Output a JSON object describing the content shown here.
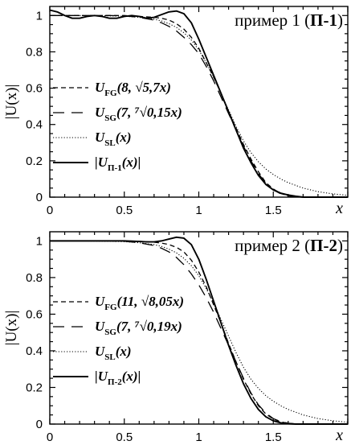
{
  "chart_data": [
    {
      "type": "line",
      "title_prefix": "пример 1 (",
      "title_bold": "П-1",
      "title_suffix": ")",
      "xlabel": "x",
      "ylabel": "|U(x)|",
      "xlim": [
        0,
        2
      ],
      "ylim": [
        0,
        1.05
      ],
      "xticks": [
        "0",
        "0.5",
        "1",
        "1.5"
      ],
      "xtick_values": [
        0,
        0.5,
        1,
        1.5
      ],
      "yticks": [
        "0",
        "0.2",
        "0.4",
        "0.6",
        "0.8",
        "1"
      ],
      "ytick_values": [
        0,
        0.2,
        0.4,
        0.6,
        0.8,
        1
      ],
      "legend_placement": "center-left",
      "series": [
        {
          "legend": "U_FG(8, √5,7x)",
          "style": "short-dash",
          "x": [
            0,
            0.1,
            0.2,
            0.3,
            0.4,
            0.5,
            0.6,
            0.7,
            0.75,
            0.8,
            0.85,
            0.9,
            0.95,
            1.0,
            1.05,
            1.1,
            1.15,
            1.2,
            1.25,
            1.3,
            1.35,
            1.4,
            1.45,
            1.5,
            1.55,
            1.6,
            1.65,
            1.7,
            1.8,
            1.9,
            2.0
          ],
          "y": [
            1.0,
            1.0,
            1.0,
            1.0,
            1.0,
            1.0,
            0.995,
            0.99,
            0.985,
            0.975,
            0.955,
            0.925,
            0.88,
            0.82,
            0.74,
            0.66,
            0.57,
            0.47,
            0.38,
            0.29,
            0.21,
            0.14,
            0.08,
            0.045,
            0.02,
            0.008,
            0.003,
            0.0,
            0.0,
            0.0,
            0.0
          ]
        },
        {
          "legend": "U_SG(7, ⁷√0,15x)",
          "style": "long-dash",
          "x": [
            0,
            0.1,
            0.2,
            0.3,
            0.4,
            0.5,
            0.6,
            0.7,
            0.75,
            0.8,
            0.85,
            0.9,
            0.95,
            1.0,
            1.05,
            1.1,
            1.15,
            1.2,
            1.25,
            1.3,
            1.35,
            1.4,
            1.45,
            1.5,
            1.55,
            1.6,
            1.65,
            1.7,
            1.8,
            1.9,
            2.0
          ],
          "y": [
            1.0,
            1.0,
            1.0,
            1.0,
            1.0,
            0.998,
            0.99,
            0.975,
            0.96,
            0.94,
            0.915,
            0.88,
            0.84,
            0.79,
            0.72,
            0.64,
            0.55,
            0.46,
            0.37,
            0.28,
            0.2,
            0.13,
            0.075,
            0.04,
            0.018,
            0.007,
            0.002,
            0.0,
            0.0,
            0.0,
            0.0
          ]
        },
        {
          "legend": "U_SL(x)",
          "style": "dotted",
          "x": [
            0,
            0.1,
            0.2,
            0.3,
            0.4,
            0.5,
            0.6,
            0.7,
            0.75,
            0.8,
            0.85,
            0.9,
            0.95,
            1.0,
            1.05,
            1.1,
            1.15,
            1.2,
            1.25,
            1.3,
            1.35,
            1.4,
            1.45,
            1.5,
            1.55,
            1.6,
            1.65,
            1.7,
            1.8,
            1.9,
            2.0
          ],
          "y": [
            1.0,
            1.0,
            1.0,
            0.999,
            0.998,
            0.996,
            0.99,
            0.98,
            0.97,
            0.955,
            0.935,
            0.905,
            0.865,
            0.81,
            0.74,
            0.66,
            0.57,
            0.48,
            0.39,
            0.31,
            0.245,
            0.195,
            0.155,
            0.125,
            0.1,
            0.08,
            0.065,
            0.05,
            0.03,
            0.018,
            0.01
          ]
        },
        {
          "legend": "|U_П-1(x)|",
          "style": "solid",
          "x": [
            0,
            0.05,
            0.1,
            0.15,
            0.2,
            0.25,
            0.3,
            0.35,
            0.4,
            0.45,
            0.5,
            0.55,
            0.6,
            0.65,
            0.7,
            0.75,
            0.8,
            0.85,
            0.9,
            0.95,
            1.0,
            1.05,
            1.1,
            1.15,
            1.2,
            1.25,
            1.3,
            1.35,
            1.4,
            1.45,
            1.5,
            1.55,
            1.6,
            1.65,
            1.7,
            1.8,
            1.9,
            2.0
          ],
          "y": [
            1.03,
            1.02,
            1.0,
            0.985,
            0.985,
            0.995,
            1.0,
            0.995,
            0.985,
            0.985,
            0.995,
            1.0,
            0.995,
            0.985,
            0.99,
            1.005,
            1.02,
            1.025,
            1.01,
            0.96,
            0.87,
            0.77,
            0.67,
            0.57,
            0.47,
            0.37,
            0.27,
            0.19,
            0.12,
            0.07,
            0.04,
            0.022,
            0.012,
            0.005,
            0.0,
            0.0,
            0.0,
            0.0
          ]
        }
      ]
    },
    {
      "type": "line",
      "title_prefix": "пример 2 (",
      "title_bold": "П-2",
      "title_suffix": ")",
      "xlabel": "x",
      "ylabel": "|U(x)|",
      "xlim": [
        0,
        2
      ],
      "ylim": [
        0,
        1.05
      ],
      "xticks": [
        "0",
        "0.5",
        "1",
        "1.5"
      ],
      "xtick_values": [
        0,
        0.5,
        1,
        1.5
      ],
      "yticks": [
        "0",
        "0.2",
        "0.4",
        "0.6",
        "0.8",
        "1"
      ],
      "ytick_values": [
        0,
        0.2,
        0.4,
        0.6,
        0.8,
        1
      ],
      "legend_placement": "center-left",
      "series": [
        {
          "legend": "U_FG(11, √8,05x)",
          "style": "short-dash",
          "x": [
            0,
            0.1,
            0.2,
            0.3,
            0.4,
            0.5,
            0.6,
            0.7,
            0.75,
            0.8,
            0.85,
            0.9,
            0.95,
            1.0,
            1.05,
            1.1,
            1.15,
            1.2,
            1.25,
            1.3,
            1.35,
            1.4,
            1.45,
            1.5,
            1.55,
            1.6,
            1.65,
            1.7,
            1.8,
            1.9,
            2.0
          ],
          "y": [
            1.0,
            1.0,
            1.0,
            1.0,
            1.0,
            1.0,
            0.998,
            0.993,
            0.988,
            0.98,
            0.965,
            0.94,
            0.895,
            0.83,
            0.75,
            0.65,
            0.55,
            0.44,
            0.34,
            0.245,
            0.165,
            0.1,
            0.055,
            0.028,
            0.012,
            0.004,
            0.001,
            0.0,
            0.0,
            0.0,
            0.0
          ]
        },
        {
          "legend": "U_SG(7, ⁷√0,19x)",
          "style": "long-dash",
          "x": [
            0,
            0.1,
            0.2,
            0.3,
            0.4,
            0.5,
            0.6,
            0.7,
            0.75,
            0.8,
            0.85,
            0.9,
            0.95,
            1.0,
            1.05,
            1.1,
            1.15,
            1.2,
            1.25,
            1.3,
            1.35,
            1.4,
            1.45,
            1.5,
            1.55,
            1.6,
            1.65,
            1.7,
            1.8,
            1.9,
            2.0
          ],
          "y": [
            1.0,
            1.0,
            1.0,
            1.0,
            1.0,
            0.998,
            0.99,
            0.975,
            0.96,
            0.94,
            0.91,
            0.87,
            0.82,
            0.76,
            0.69,
            0.61,
            0.52,
            0.43,
            0.34,
            0.25,
            0.17,
            0.105,
            0.06,
            0.03,
            0.013,
            0.005,
            0.001,
            0.0,
            0.0,
            0.0,
            0.0
          ]
        },
        {
          "legend": "U_SL(x)",
          "style": "dotted",
          "x": [
            0,
            0.1,
            0.2,
            0.3,
            0.4,
            0.5,
            0.6,
            0.7,
            0.75,
            0.8,
            0.85,
            0.9,
            0.95,
            1.0,
            1.05,
            1.1,
            1.15,
            1.2,
            1.25,
            1.3,
            1.35,
            1.4,
            1.45,
            1.5,
            1.55,
            1.6,
            1.65,
            1.7,
            1.8,
            1.9,
            2.0
          ],
          "y": [
            1.0,
            1.0,
            1.0,
            0.999,
            0.998,
            0.996,
            0.99,
            0.98,
            0.97,
            0.955,
            0.935,
            0.905,
            0.865,
            0.81,
            0.74,
            0.66,
            0.57,
            0.48,
            0.39,
            0.31,
            0.245,
            0.195,
            0.155,
            0.125,
            0.1,
            0.08,
            0.065,
            0.05,
            0.03,
            0.018,
            0.01
          ]
        },
        {
          "legend": "|U_П-2(x)|",
          "style": "solid",
          "x": [
            0,
            0.1,
            0.2,
            0.3,
            0.4,
            0.5,
            0.6,
            0.65,
            0.7,
            0.75,
            0.8,
            0.85,
            0.9,
            0.95,
            1.0,
            1.05,
            1.1,
            1.15,
            1.2,
            1.25,
            1.3,
            1.35,
            1.4,
            1.45,
            1.5,
            1.55,
            1.6,
            1.65,
            1.7,
            1.8,
            1.9,
            2.0
          ],
          "y": [
            1.0,
            1.0,
            1.0,
            1.0,
            1.0,
            1.0,
            0.997,
            0.995,
            0.995,
            1.0,
            1.01,
            1.02,
            1.015,
            0.98,
            0.9,
            0.79,
            0.67,
            0.55,
            0.43,
            0.32,
            0.22,
            0.14,
            0.08,
            0.04,
            0.018,
            0.007,
            0.002,
            0.0,
            0.0,
            0.0,
            0.0,
            0.0
          ]
        }
      ]
    }
  ]
}
